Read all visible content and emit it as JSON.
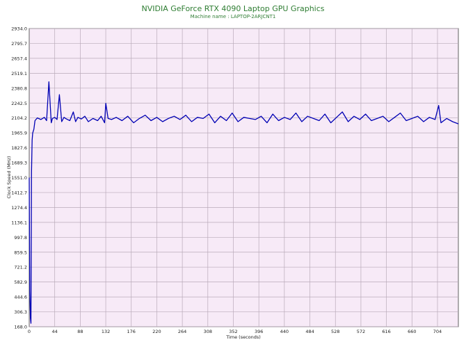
{
  "chart_data": {
    "type": "line",
    "title": "NVIDIA GeForce RTX 4090 Laptop GPU Graphics",
    "subtitle": "Machine name : LAPTOP-2ARJCNT1",
    "xlabel": "Time (seconds)",
    "ylabel": "Clock Speed (MHz)",
    "xlim": [
      0,
      740
    ],
    "ylim": [
      168.0,
      2934.0
    ],
    "grid": true,
    "x_ticks": [
      "0",
      "44",
      "88",
      "132",
      "176",
      "220",
      "264",
      "308",
      "352",
      "396",
      "440",
      "484",
      "528",
      "572",
      "616",
      "660",
      "704"
    ],
    "y_ticks": [
      "168.0",
      "306.3",
      "444.6",
      "582.9",
      "721.2",
      "859.5",
      "997.8",
      "1136.1",
      "1274.4",
      "1412.7",
      "1551.0",
      "1689.3",
      "1827.6",
      "1965.9",
      "2104.2",
      "2242.5",
      "2380.8",
      "2519.1",
      "2657.4",
      "2795.7",
      "2934.0"
    ],
    "series": [
      {
        "color": "#0000b4",
        "x": [
          0,
          1,
          2,
          3,
          4,
          5,
          6,
          8,
          10,
          14,
          20,
          26,
          30,
          34,
          38,
          40,
          44,
          48,
          52,
          56,
          60,
          64,
          70,
          76,
          80,
          84,
          90,
          96,
          102,
          110,
          118,
          124,
          130,
          132,
          136,
          142,
          150,
          160,
          170,
          180,
          190,
          200,
          210,
          220,
          230,
          240,
          250,
          260,
          270,
          280,
          290,
          300,
          310,
          320,
          330,
          340,
          350,
          360,
          370,
          380,
          390,
          400,
          410,
          420,
          430,
          440,
          450,
          460,
          470,
          480,
          490,
          500,
          510,
          520,
          530,
          540,
          550,
          560,
          570,
          580,
          590,
          600,
          610,
          620,
          630,
          640,
          650,
          660,
          670,
          680,
          690,
          700,
          706,
          710,
          720,
          730,
          740
        ],
        "y": [
          1551,
          500,
          250,
          200,
          1600,
          1900,
          1965,
          2000,
          2080,
          2105,
          2090,
          2110,
          2080,
          2440,
          2060,
          2100,
          2110,
          2090,
          2320,
          2070,
          2110,
          2095,
          2080,
          2160,
          2070,
          2110,
          2095,
          2120,
          2070,
          2100,
          2080,
          2120,
          2060,
          2240,
          2100,
          2090,
          2110,
          2080,
          2120,
          2060,
          2100,
          2130,
          2080,
          2110,
          2070,
          2100,
          2120,
          2090,
          2130,
          2070,
          2110,
          2100,
          2140,
          2060,
          2120,
          2080,
          2150,
          2070,
          2110,
          2100,
          2090,
          2120,
          2060,
          2140,
          2080,
          2110,
          2090,
          2150,
          2070,
          2120,
          2100,
          2080,
          2140,
          2060,
          2110,
          2160,
          2070,
          2120,
          2090,
          2140,
          2080,
          2100,
          2120,
          2070,
          2110,
          2150,
          2080,
          2100,
          2120,
          2070,
          2110,
          2090,
          2220,
          2060,
          2100,
          2070,
          2050
        ]
      }
    ]
  }
}
